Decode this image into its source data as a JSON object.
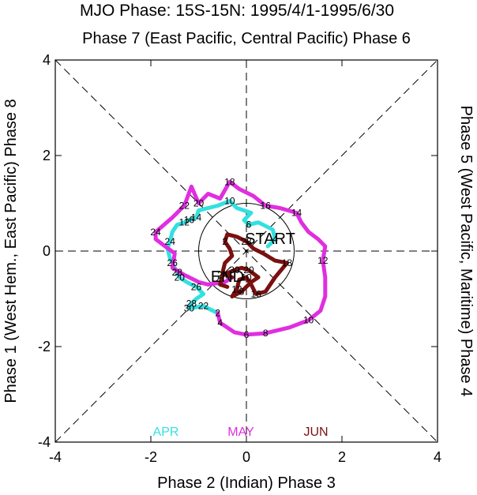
{
  "chart_data": {
    "type": "line",
    "title": "MJO Phase: 15S-15N: 1995/4/1-1995/6/30",
    "top_label": "Phase 7 (East Pacific, Central Pacific) Phase 6",
    "bottom_label": "Phase 2 (Indian) Phase 3",
    "left_label": "Phase 1 (West Hem., East Pacific) Phase 8",
    "right_label": "Phase 5 (West Pacific, Maritime) Phase 4",
    "xlim": [
      -4,
      4
    ],
    "ylim": [
      -4,
      4
    ],
    "x_ticks": [
      -4,
      -2,
      0,
      2,
      4
    ],
    "y_ticks": [
      -4,
      -2,
      0,
      2,
      4
    ],
    "x_tick_labels": [
      "-4",
      "-2",
      "0",
      "2",
      "4"
    ],
    "y_tick_labels": [
      "-4",
      "-2",
      "0",
      "2",
      "4"
    ],
    "unit_circle_radius": 1,
    "start_label": "START",
    "end_label": "END",
    "colors": {
      "APR": "#33e0e0",
      "MAY": "#e02ee0",
      "JUN": "#7a1010"
    },
    "legend": [
      "APR",
      "MAY",
      "JUN"
    ],
    "series": [
      {
        "name": "APR",
        "points": [
          [
            0.45,
            0.1
          ],
          [
            0.6,
            0.25
          ],
          [
            0.55,
            0.45
          ],
          [
            0.25,
            0.6
          ],
          [
            0.05,
            0.55
          ],
          [
            -0.05,
            0.65
          ],
          [
            0.1,
            0.8
          ],
          [
            -0.2,
            0.9
          ],
          [
            -0.35,
            1.05
          ],
          [
            -0.6,
            0.95
          ],
          [
            -0.8,
            0.9
          ],
          [
            -1.0,
            0.85
          ],
          [
            -1.05,
            0.7
          ],
          [
            -1.2,
            0.65
          ],
          [
            -1.3,
            0.6
          ],
          [
            -1.45,
            0.55
          ],
          [
            -1.55,
            0.4
          ],
          [
            -1.6,
            0.2
          ],
          [
            -1.65,
            0.05
          ],
          [
            -1.6,
            -0.15
          ],
          [
            -1.55,
            -0.25
          ],
          [
            -1.5,
            -0.35
          ],
          [
            -1.45,
            -0.45
          ],
          [
            -1.4,
            -0.55
          ],
          [
            -1.25,
            -0.65
          ],
          [
            -1.05,
            -0.75
          ],
          [
            -0.9,
            -0.9
          ],
          [
            -1.05,
            -1.0
          ],
          [
            -1.15,
            -1.1
          ],
          [
            -1.2,
            -1.2
          ],
          [
            -0.9,
            -1.15
          ],
          [
            -0.6,
            -1.3
          ]
        ],
        "day_labels": [
          {
            "i": 14,
            "text": "12"
          },
          {
            "i": 8,
            "text": "10"
          },
          {
            "i": 12,
            "text": "14"
          },
          {
            "i": 13,
            "text": "16"
          },
          {
            "i": 17,
            "text": "24"
          },
          {
            "i": 20,
            "text": "26"
          },
          {
            "i": 22,
            "text": "28"
          },
          {
            "i": 23,
            "text": "20"
          },
          {
            "i": 25,
            "text": "26"
          },
          {
            "i": 28,
            "text": "28"
          },
          {
            "i": 29,
            "text": "30"
          },
          {
            "i": 30,
            "text": "22"
          },
          {
            "i": 31,
            "text": "2"
          },
          {
            "i": 4,
            "text": "6"
          },
          {
            "i": 1,
            "text": "4"
          }
        ]
      },
      {
        "name": "MAY",
        "points": [
          [
            -0.6,
            -1.3
          ],
          [
            -0.55,
            -1.5
          ],
          [
            -0.25,
            -1.7
          ],
          [
            0.0,
            -1.75
          ],
          [
            0.4,
            -1.72
          ],
          [
            0.9,
            -1.6
          ],
          [
            1.3,
            -1.45
          ],
          [
            1.55,
            -1.25
          ],
          [
            1.65,
            -0.95
          ],
          [
            1.65,
            -0.55
          ],
          [
            1.6,
            -0.2
          ],
          [
            1.65,
            0.1
          ],
          [
            1.5,
            0.25
          ],
          [
            1.3,
            0.4
          ],
          [
            1.15,
            0.6
          ],
          [
            1.05,
            0.8
          ],
          [
            0.7,
            0.9
          ],
          [
            0.4,
            0.95
          ],
          [
            0.15,
            1.15
          ],
          [
            -0.15,
            1.3
          ],
          [
            -0.35,
            1.45
          ],
          [
            -0.55,
            1.1
          ],
          [
            -0.8,
            1.2
          ],
          [
            -1.0,
            1.0
          ],
          [
            -1.15,
            1.35
          ],
          [
            -1.3,
            0.95
          ],
          [
            -1.55,
            0.7
          ],
          [
            -1.9,
            0.4
          ],
          [
            -1.9,
            0.25
          ],
          [
            -1.7,
            0.1
          ],
          [
            -1.5,
            -0.05
          ],
          [
            -1.55,
            -0.35
          ],
          [
            -1.3,
            -0.5
          ],
          [
            -1.0,
            -0.65
          ],
          [
            -0.8,
            -0.7
          ],
          [
            -0.45,
            -0.65
          ],
          [
            -0.3,
            -0.55
          ]
        ],
        "day_labels": [
          {
            "i": 1,
            "text": "4"
          },
          {
            "i": 3,
            "text": "6"
          },
          {
            "i": 4,
            "text": "8"
          },
          {
            "i": 6,
            "text": "10"
          },
          {
            "i": 10,
            "text": "12"
          },
          {
            "i": 15,
            "text": "14"
          },
          {
            "i": 17,
            "text": "16"
          },
          {
            "i": 20,
            "text": "18"
          },
          {
            "i": 23,
            "text": "20"
          },
          {
            "i": 27,
            "text": "24"
          },
          {
            "i": 25,
            "text": "22"
          }
        ]
      },
      {
        "name": "JUN",
        "points": [
          [
            -0.3,
            -0.55
          ],
          [
            -0.5,
            -0.45
          ],
          [
            -0.45,
            -0.25
          ],
          [
            -0.3,
            -0.1
          ],
          [
            -0.35,
            0.05
          ],
          [
            -0.45,
            0.2
          ],
          [
            -0.4,
            0.35
          ],
          [
            -0.2,
            0.3
          ],
          [
            0.0,
            0.2
          ],
          [
            0.15,
            0.05
          ],
          [
            0.35,
            -0.05
          ],
          [
            0.6,
            -0.2
          ],
          [
            0.85,
            -0.25
          ],
          [
            0.6,
            -0.55
          ],
          [
            0.4,
            -0.85
          ],
          [
            0.2,
            -0.9
          ],
          [
            0.1,
            -0.7
          ],
          [
            0.0,
            -0.55
          ],
          [
            -0.15,
            -0.6
          ],
          [
            -0.2,
            -0.8
          ],
          [
            -0.3,
            -0.95
          ],
          [
            -0.1,
            -0.85
          ],
          [
            0.1,
            -0.65
          ],
          [
            0.25,
            -0.55
          ],
          [
            0.05,
            -0.4
          ],
          [
            -0.1,
            -0.35
          ],
          [
            -0.25,
            -0.4
          ],
          [
            -0.5,
            -0.5
          ],
          [
            -0.55,
            -0.7
          ],
          [
            -0.4,
            -0.75
          ]
        ],
        "day_labels": [
          {
            "i": 5,
            "text": "2"
          },
          {
            "i": 8,
            "text": "28"
          },
          {
            "i": 12,
            "text": "18"
          },
          {
            "i": 15,
            "text": "16"
          },
          {
            "i": 17,
            "text": "10"
          },
          {
            "i": 19,
            "text": "12"
          },
          {
            "i": 21,
            "text": "8"
          },
          {
            "i": 24,
            "text": "20"
          },
          {
            "i": 27,
            "text": "24"
          },
          {
            "i": 26,
            "text": "30"
          }
        ]
      }
    ]
  }
}
